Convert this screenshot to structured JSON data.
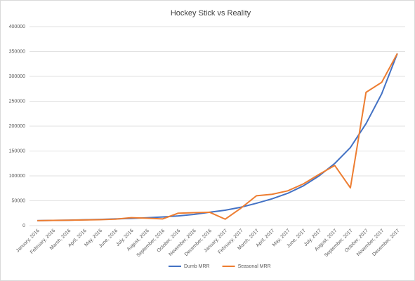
{
  "chart_data": {
    "type": "line",
    "title": "Hockey Stick vs Reality",
    "categories": [
      "January, 2016",
      "February, 2016",
      "March, 2016",
      "April, 2016",
      "May, 2016",
      "June, 2016",
      "July, 2016",
      "August, 2016",
      "September, 2016",
      "October, 2016",
      "November, 2016",
      "December, 2016",
      "January, 2017",
      "February, 2017",
      "March, 2017",
      "April, 2017",
      "May, 2017",
      "June, 2017",
      "July, 2017",
      "August, 2017",
      "September, 2017",
      "October, 2017",
      "November, 2017",
      "December, 2017"
    ],
    "series": [
      {
        "name": "Dumb MRR",
        "color": "#4472c4",
        "values": [
          10000,
          10500,
          11000,
          11800,
          12500,
          13500,
          14500,
          15800,
          17500,
          19500,
          22500,
          27000,
          31000,
          37000,
          45000,
          54000,
          65000,
          80000,
          100000,
          125000,
          157000,
          205000,
          265000,
          346000
        ]
      },
      {
        "name": "Seasonal MRR",
        "color": "#ed7d31",
        "values": [
          10000,
          10500,
          11000,
          11500,
          12000,
          13000,
          16000,
          15000,
          13500,
          25000,
          26000,
          27000,
          13000,
          35000,
          60000,
          63000,
          70000,
          84000,
          103000,
          121000,
          76000,
          268000,
          288000,
          346000
        ]
      }
    ],
    "ylim": [
      0,
      400000
    ],
    "yticks": [
      0,
      50000,
      100000,
      150000,
      200000,
      250000,
      300000,
      350000,
      400000
    ],
    "grid": true,
    "legend": "bottom"
  }
}
